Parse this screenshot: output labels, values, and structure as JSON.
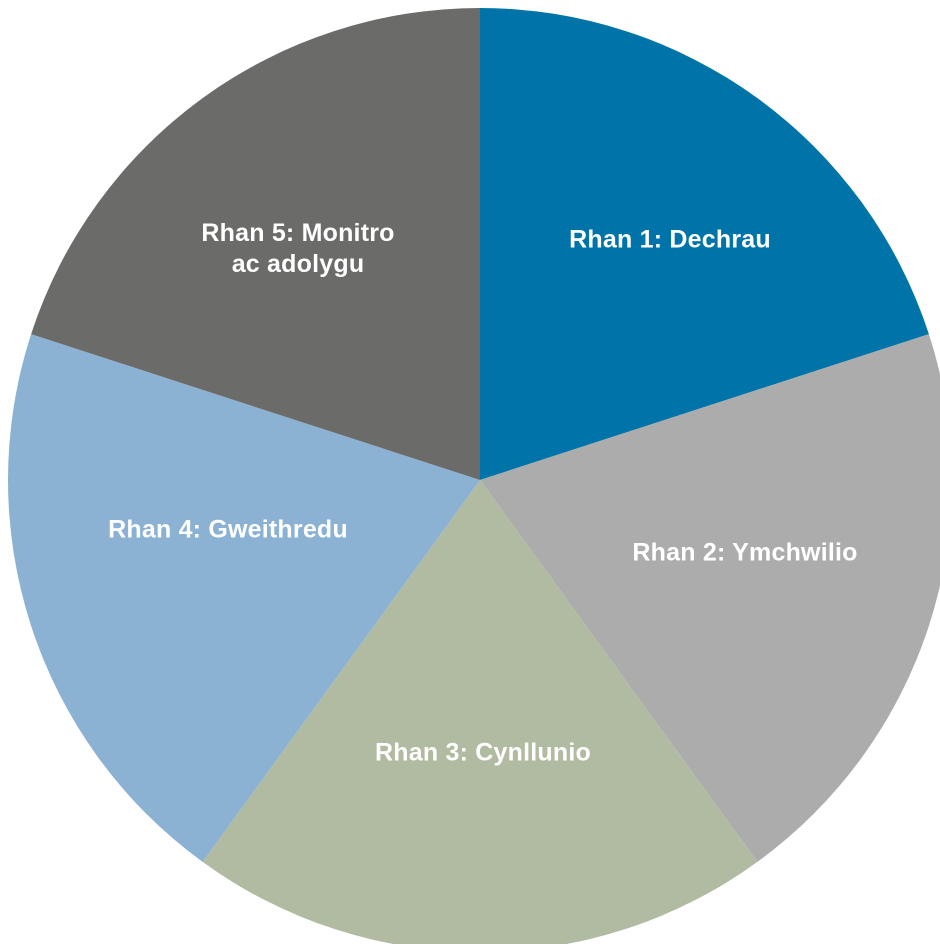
{
  "segments": [
    {
      "label": "Rhan 1: Dechrau",
      "color": "#0074a8"
    },
    {
      "label": "Rhan 2: Ymchwilio",
      "color": "#acacac"
    },
    {
      "label": "Rhan 3: Cynllunio",
      "color": "#b1bba2"
    },
    {
      "label": "Rhan 4: Gweithredu",
      "color": "#8bb1d3"
    },
    {
      "label": "Rhan 5: Monitro\nac adolygu",
      "color": "#6b6b69"
    }
  ]
}
